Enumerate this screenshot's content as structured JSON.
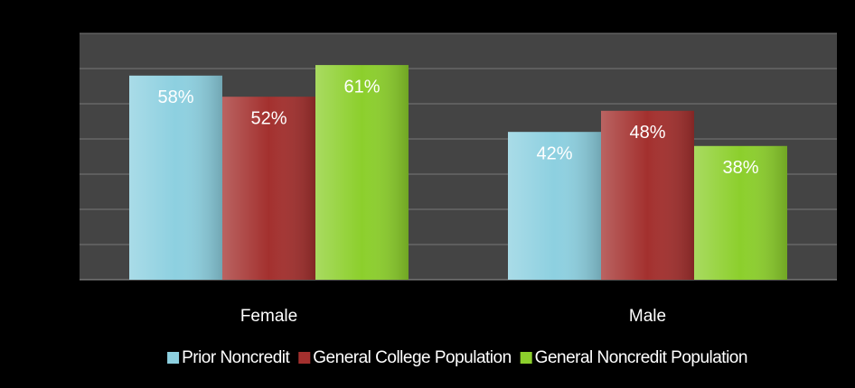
{
  "chart_data": {
    "type": "bar",
    "categories": [
      "Female",
      "Male"
    ],
    "series": [
      {
        "name": "Prior Noncredit",
        "color": "#8dd0e0",
        "values": [
          58,
          42
        ],
        "value_labels": [
          "58%",
          "42%"
        ]
      },
      {
        "name": "General College Population",
        "color": "#a3302e",
        "values": [
          52,
          48
        ],
        "value_labels": [
          "52%",
          "48%"
        ]
      },
      {
        "name": "General Noncredit Population",
        "color": "#8ccf2c",
        "values": [
          61,
          38
        ],
        "value_labels": [
          "61%",
          "38%"
        ]
      }
    ],
    "ylim": [
      0,
      70
    ],
    "yticks": [
      0,
      10,
      20,
      30,
      40,
      50,
      60,
      70
    ],
    "grid": true
  }
}
